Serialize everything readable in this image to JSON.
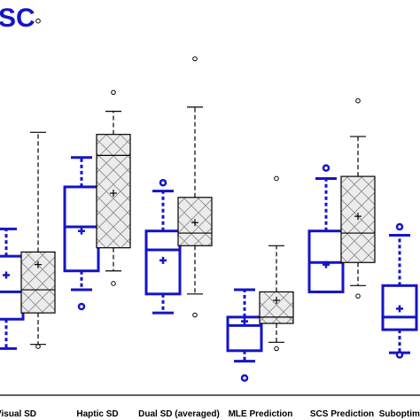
{
  "chart_data": {
    "type": "boxplot",
    "title": "SC",
    "title_color": "#1414c8",
    "blue": "#1414c8",
    "black": "#000000",
    "hatch_fill": "#ececec",
    "ylim": [
      0,
      1
    ],
    "y_direction": "up",
    "grid": false,
    "legend": "none",
    "categories": [
      "Visual SD",
      "Haptic SD",
      "Dual SD (averaged)",
      "MLE Prediction",
      "SCS Prediction",
      "Suboptimal"
    ],
    "boxes": [
      {
        "group": 0,
        "style": "solid-blue",
        "whisker_low": 0.17,
        "q1": 0.24,
        "median": 0.305,
        "q3": 0.39,
        "whisker_high": 0.455,
        "mean": 0.345,
        "outliers_low": [],
        "outliers_high": []
      },
      {
        "group": 0,
        "style": "hatched-black",
        "whisker_low": 0.18,
        "q1": 0.255,
        "median": 0.31,
        "q3": 0.4,
        "whisker_high": 0.685,
        "mean": 0.37,
        "outliers_low": [
          0.175
        ],
        "outliers_high": [
          0.95
        ]
      },
      {
        "group": 1,
        "style": "solid-blue",
        "whisker_low": 0.31,
        "q1": 0.355,
        "median": 0.46,
        "q3": 0.555,
        "whisker_high": 0.625,
        "mean": 0.45,
        "outliers_low": [
          0.27
        ],
        "outliers_high": []
      },
      {
        "group": 1,
        "style": "hatched-black",
        "whisker_low": 0.355,
        "q1": 0.41,
        "median": 0.63,
        "q3": 0.68,
        "whisker_high": 0.735,
        "mean": 0.54,
        "outliers_low": [
          0.325
        ],
        "outliers_high": [
          0.78
        ]
      },
      {
        "group": 2,
        "style": "solid-blue",
        "whisker_low": 0.255,
        "q1": 0.3,
        "median": 0.405,
        "q3": 0.45,
        "whisker_high": 0.545,
        "mean": 0.38,
        "outliers_low": [],
        "outliers_high": [
          0.565
        ]
      },
      {
        "group": 2,
        "style": "hatched-black",
        "whisker_low": 0.3,
        "q1": 0.415,
        "median": 0.445,
        "q3": 0.53,
        "whisker_high": 0.745,
        "mean": 0.47,
        "outliers_low": [
          0.25
        ],
        "outliers_high": [
          0.86
        ]
      },
      {
        "group": 3,
        "style": "solid-blue",
        "whisker_low": 0.14,
        "q1": 0.165,
        "median": 0.225,
        "q3": 0.245,
        "whisker_high": 0.31,
        "mean": 0.235,
        "outliers_low": [
          0.1
        ],
        "outliers_high": []
      },
      {
        "group": 3,
        "style": "hatched-black",
        "whisker_low": 0.185,
        "q1": 0.23,
        "median": 0.245,
        "q3": 0.305,
        "whisker_high": 0.415,
        "mean": 0.285,
        "outliers_low": [
          0.17
        ],
        "outliers_high": [
          0.575
        ]
      },
      {
        "group": 4,
        "style": "solid-blue",
        "whisker_low": 0.305,
        "q1": 0.305,
        "median": 0.375,
        "q3": 0.45,
        "whisker_high": 0.575,
        "mean": 0.37,
        "outliers_low": [],
        "outliers_high": [
          0.6
        ]
      },
      {
        "group": 4,
        "style": "hatched-black",
        "whisker_low": 0.32,
        "q1": 0.375,
        "median": 0.445,
        "q3": 0.58,
        "whisker_high": 0.675,
        "mean": 0.485,
        "outliers_low": [
          0.295
        ],
        "outliers_high": [
          0.76
        ]
      },
      {
        "group": 5,
        "style": "solid-blue",
        "whisker_low": 0.16,
        "q1": 0.215,
        "median": 0.245,
        "q3": 0.32,
        "whisker_high": 0.44,
        "mean": 0.265,
        "outliers_low": [
          0.155
        ],
        "outliers_high": [
          0.46
        ]
      }
    ]
  }
}
